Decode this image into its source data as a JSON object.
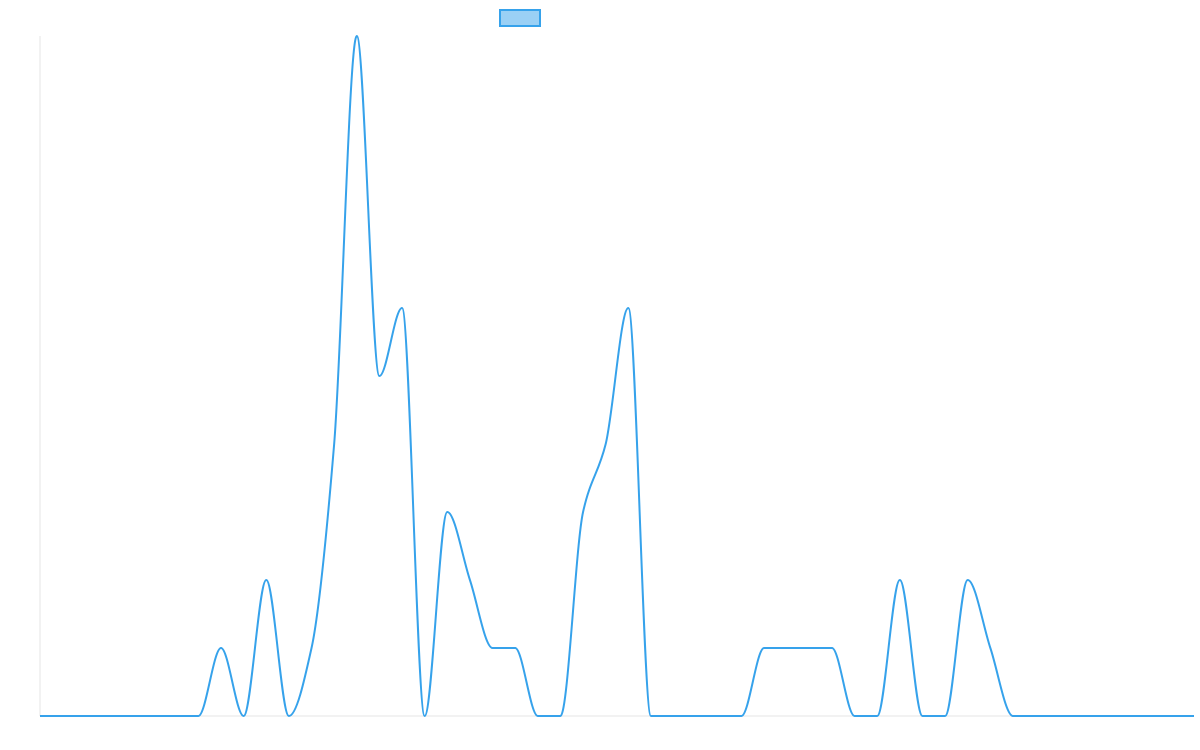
{
  "chart_data": {
    "type": "line",
    "title": "",
    "xlabel": "",
    "ylabel": "",
    "grid": false,
    "legend": {
      "placement": "top-center",
      "entries": [
        {
          "name": "",
          "color": "#36A2EB"
        }
      ]
    },
    "series": [
      {
        "name": "",
        "color": "#36A2EB",
        "fill": "#9AD0F5",
        "values": [
          0,
          0,
          0,
          0,
          0,
          0,
          0,
          0,
          1,
          0,
          2,
          0,
          1,
          4,
          10,
          5,
          6,
          0,
          3,
          2,
          1,
          1,
          0,
          0,
          3,
          4,
          6,
          0,
          0,
          0,
          0,
          0,
          1,
          1,
          1,
          1,
          0,
          0,
          2,
          0,
          0,
          2,
          1,
          0,
          0,
          0,
          0,
          0,
          0,
          0,
          0,
          0
        ]
      }
    ],
    "ylim": [
      0,
      10
    ]
  }
}
